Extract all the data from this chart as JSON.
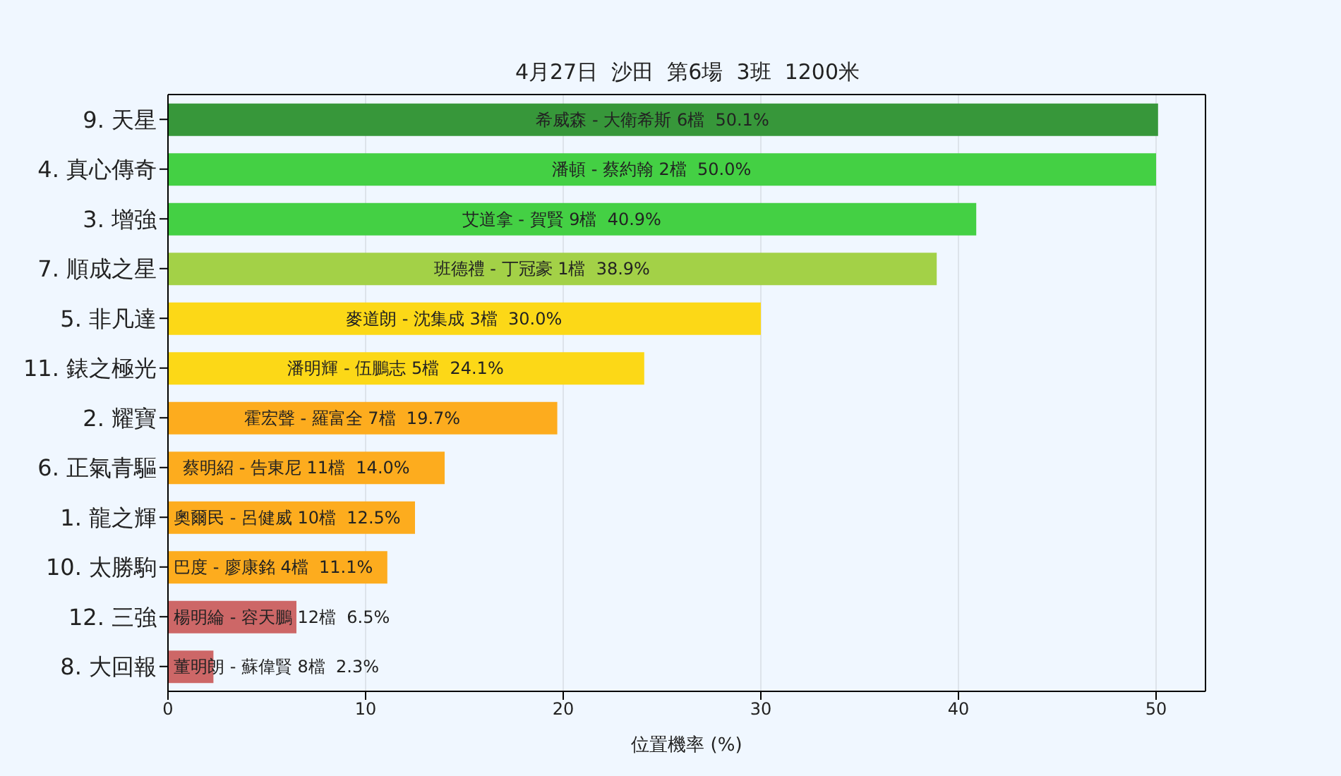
{
  "chart_data": {
    "type": "bar",
    "orientation": "horizontal",
    "title": "4月27日  沙田  第6場  3班  1200米",
    "xlabel": "位置機率 (%)",
    "categories": [
      "9. 天星",
      "4. 真心傳奇",
      "3. 增強",
      "7. 順成之星",
      "5. 非凡達",
      "11. 錶之極光",
      "2. 耀寶",
      "6. 正氣青驅",
      "1. 龍之輝",
      "10. 太勝駒",
      "12. 三強",
      "8. 大回報"
    ],
    "values": [
      50.1,
      50.0,
      40.9,
      38.9,
      30.0,
      24.1,
      19.7,
      14.0,
      12.5,
      11.1,
      6.5,
      2.3
    ],
    "colors": [
      "#37973a",
      "#44d044",
      "#44d044",
      "#a3d147",
      "#fcd817",
      "#fcd817",
      "#fdac1e",
      "#fdac1e",
      "#fdac1e",
      "#fdac1e",
      "#cd6767",
      "#cd6767"
    ],
    "value_labels": [
      "希威森 - 大衛希斯 6檔  50.1%",
      "潘頓 - 蔡約翰 2檔  50.0%",
      "艾道拿 - 賀賢 9檔  40.9%",
      "班德禮 - 丁冠豪 1檔  38.9%",
      "麥道朗 - 沈集成 3檔  30.0%",
      "潘明輝 - 伍鵬志 5檔  24.1%",
      "霍宏聲 - 羅富全 7檔  19.7%",
      "蔡明紹 - 告東尼 11檔  14.0%",
      "奧爾民 - 呂健威 10檔  12.5%",
      "巴度 - 廖康銘 4檔  11.1%",
      "楊明綸 - 容天鵬 12檔  6.5%",
      "董明朗 - 蘇偉賢 8檔  2.3%"
    ],
    "xlim": [
      0,
      52.5
    ],
    "xticks": [
      0,
      10,
      20,
      30,
      40,
      50
    ],
    "grid": "x"
  }
}
